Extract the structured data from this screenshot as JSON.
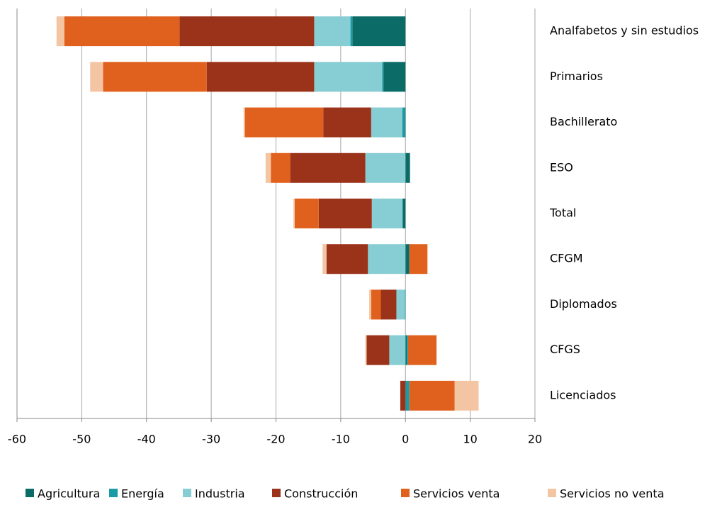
{
  "chart_data": {
    "type": "stacked-barh",
    "categories": [
      "Analfabetos y sin estudios",
      "Primarios",
      "Bachillerato",
      "ESO",
      "Total",
      "CFGM",
      "Diplomados",
      "CFGS",
      "Licenciados"
    ],
    "series": [
      {
        "name": "Agricultura",
        "color": "#0b6b66",
        "values": [
          -8.2,
          -3.4,
          -0.1,
          0.7,
          -0.4,
          0.6,
          0,
          0.2,
          0
        ]
      },
      {
        "name": "Energía",
        "color": "#1b9ba5",
        "values": [
          -0.3,
          -0.2,
          -0.4,
          0,
          -0.1,
          0,
          -0.1,
          0.2,
          0.6
        ]
      },
      {
        "name": "Industria",
        "color": "#86cdd4",
        "values": [
          -5.6,
          -10.5,
          -4.8,
          -6.2,
          -4.7,
          -5.8,
          -1.3,
          -2.5,
          0
        ]
      },
      {
        "name": "Construcción",
        "color": "#9b331b",
        "values": [
          -20.8,
          -16.6,
          -7.4,
          -11.6,
          -8.2,
          -6.4,
          -2.4,
          -3.5,
          -0.8
        ]
      },
      {
        "name": "Servicios venta",
        "color": "#e0611d",
        "values": [
          -17.8,
          -16.0,
          -12.1,
          -3.0,
          -3.7,
          2.8,
          -1.5,
          4.4,
          7.0
        ]
      },
      {
        "name": "Servicios no venta",
        "color": "#f4c5a2",
        "values": [
          -1.2,
          -2.0,
          -0.2,
          -0.8,
          -0.2,
          -0.6,
          -0.3,
          -0.2,
          3.7
        ]
      }
    ],
    "xlim": [
      -60,
      20
    ],
    "xticks": [
      -60,
      -50,
      -40,
      -30,
      -20,
      -10,
      0,
      10,
      20
    ],
    "grid": true,
    "legend": "bottom"
  }
}
